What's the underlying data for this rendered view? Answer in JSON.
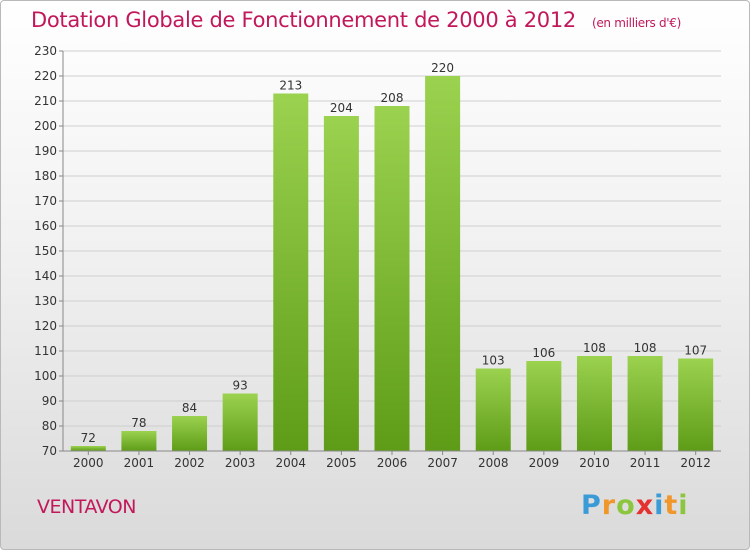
{
  "title": "Dotation Globale de Fonctionnement de 2000 à 2012",
  "unit_note": "(en milliers d'€)",
  "commune": "VENTAVON",
  "logo": {
    "letters": [
      "P",
      "r",
      "o",
      "x",
      "i",
      "t",
      "i"
    ],
    "colors": [
      "#3b9bd6",
      "#f0962b",
      "#8cc63f",
      "#e5312f",
      "#3b9bd6",
      "#f0962b",
      "#8cc63f"
    ]
  },
  "colors": {
    "accent": "#c2185b",
    "bar_light": "#9bd24f",
    "bar_dark": "#5e9c17",
    "grid": "#cfcfcf"
  },
  "chart_data": {
    "type": "bar",
    "categories": [
      "2000",
      "2001",
      "2002",
      "2003",
      "2004",
      "2005",
      "2006",
      "2007",
      "2008",
      "2009",
      "2010",
      "2011",
      "2012"
    ],
    "values": [
      72,
      78,
      84,
      93,
      213,
      204,
      208,
      220,
      103,
      106,
      108,
      108,
      107
    ],
    "ylim": [
      70,
      230
    ],
    "yticks": [
      70,
      80,
      90,
      100,
      110,
      120,
      130,
      140,
      150,
      160,
      170,
      180,
      190,
      200,
      210,
      220,
      230
    ],
    "grid": true,
    "data_labels": true
  }
}
